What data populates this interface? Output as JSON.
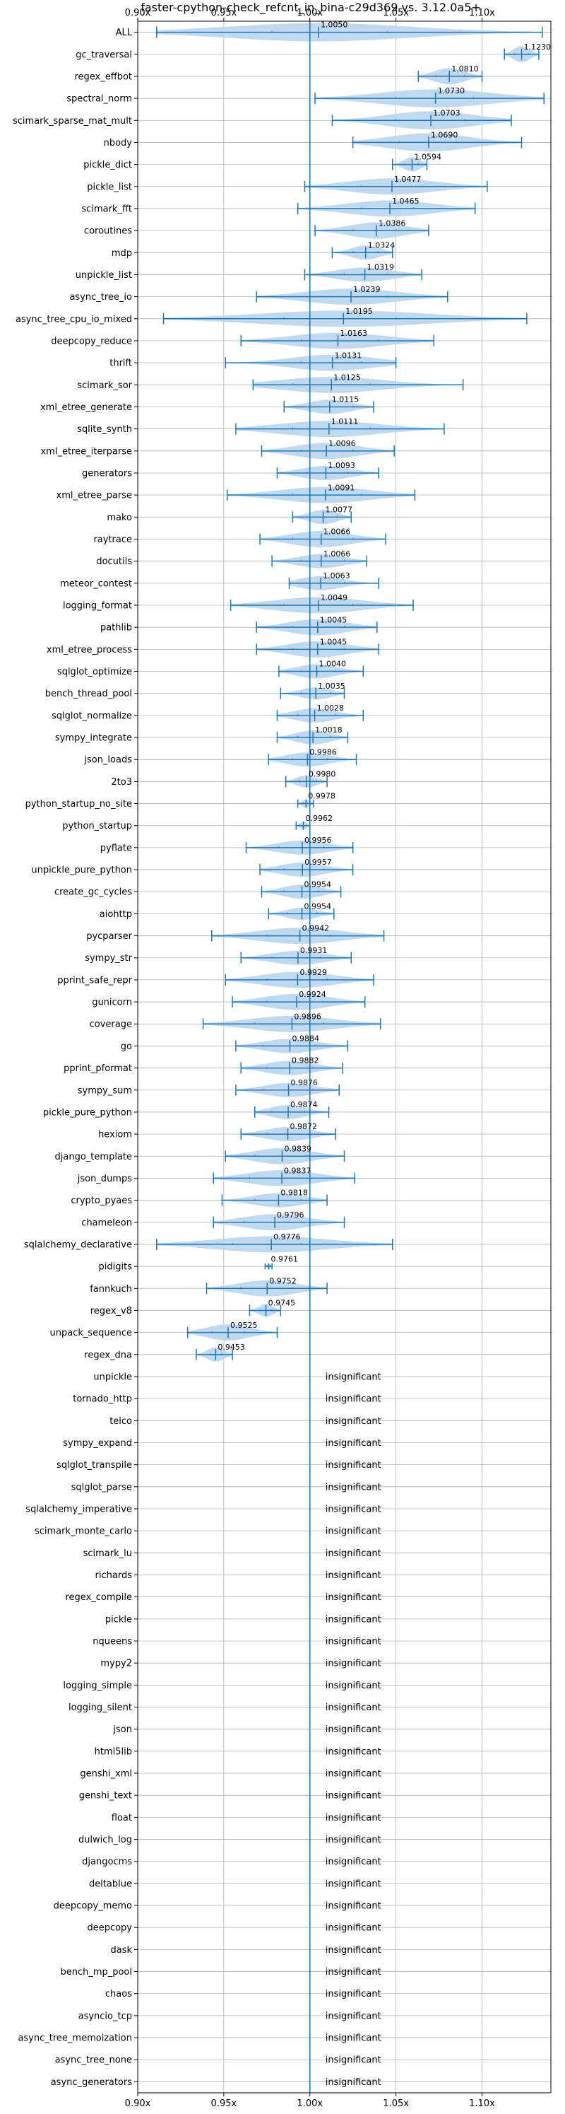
{
  "chart_data": {
    "type": "violin",
    "title": "faster-cpython-check_refcnt_in_bina-c29d369 vs. 3.12.0a5+",
    "xlim": [
      0.9,
      1.14
    ],
    "x_ticks": [
      0.9,
      0.95,
      1.0,
      1.05,
      1.1
    ],
    "x_tick_labels": [
      "0.90x",
      "0.95x",
      "1.00x",
      "1.05x",
      "1.10x"
    ],
    "reference_line": 1.0,
    "grid": true,
    "colors": {
      "violin": "#bdd7ee",
      "line": "#1f77b4",
      "grid": "#b0b0b0"
    },
    "insignificant_label": "insignificant",
    "benchmarks": [
      {
        "name": "ALL",
        "value": 1.005,
        "label": "1.0050",
        "min": 0.911,
        "max": 1.135,
        "q1": 0.978,
        "q3": 1.045,
        "width": 0.9
      },
      {
        "name": "gc_traversal",
        "value": 1.123,
        "label": "1.1230",
        "min": 1.113,
        "max": 1.133,
        "q1": 1.119,
        "q3": 1.127,
        "width": 0.8
      },
      {
        "name": "regex_effbot",
        "value": 1.081,
        "label": "1.0810",
        "min": 1.063,
        "max": 1.1,
        "q1": 1.073,
        "q3": 1.09,
        "width": 0.8
      },
      {
        "name": "spectral_norm",
        "value": 1.073,
        "label": "1.0730",
        "min": 1.003,
        "max": 1.136,
        "q1": 1.05,
        "q3": 1.095,
        "width": 0.9
      },
      {
        "name": "scimark_sparse_mat_mult",
        "value": 1.0703,
        "label": "1.0703",
        "min": 1.013,
        "max": 1.117,
        "q1": 1.05,
        "q3": 1.09,
        "width": 0.9
      },
      {
        "name": "nbody",
        "value": 1.069,
        "label": "1.0690",
        "min": 1.025,
        "max": 1.123,
        "q1": 1.052,
        "q3": 1.085,
        "width": 0.9
      },
      {
        "name": "pickle_dict",
        "value": 1.0594,
        "label": "1.0594",
        "min": 1.048,
        "max": 1.068,
        "q1": 1.055,
        "q3": 1.063,
        "width": 0.7
      },
      {
        "name": "pickle_list",
        "value": 1.0477,
        "label": "1.0477",
        "min": 0.997,
        "max": 1.103,
        "q1": 1.03,
        "q3": 1.065,
        "width": 0.8
      },
      {
        "name": "scimark_fft",
        "value": 1.0465,
        "label": "1.0465",
        "min": 0.993,
        "max": 1.096,
        "q1": 1.03,
        "q3": 1.06,
        "width": 0.8
      },
      {
        "name": "coroutines",
        "value": 1.0386,
        "label": "1.0386",
        "min": 1.003,
        "max": 1.069,
        "q1": 1.025,
        "q3": 1.05,
        "width": 0.8
      },
      {
        "name": "mdp",
        "value": 1.0324,
        "label": "1.0324",
        "min": 1.013,
        "max": 1.048,
        "q1": 1.025,
        "q3": 1.04,
        "width": 0.7
      },
      {
        "name": "unpickle_list",
        "value": 1.0319,
        "label": "1.0319",
        "min": 0.997,
        "max": 1.065,
        "q1": 1.02,
        "q3": 1.045,
        "width": 0.7
      },
      {
        "name": "async_tree_io",
        "value": 1.0239,
        "label": "1.0239",
        "min": 0.969,
        "max": 1.08,
        "q1": 1.0,
        "q3": 1.045,
        "width": 0.8
      },
      {
        "name": "async_tree_cpu_io_mixed",
        "value": 1.0195,
        "label": "1.0195",
        "min": 0.915,
        "max": 1.126,
        "q1": 0.985,
        "q3": 1.05,
        "width": 0.8
      },
      {
        "name": "deepcopy_reduce",
        "value": 1.0163,
        "label": "1.0163",
        "min": 0.96,
        "max": 1.072,
        "q1": 0.995,
        "q3": 1.04,
        "width": 0.8
      },
      {
        "name": "thrift",
        "value": 1.0131,
        "label": "1.0131",
        "min": 0.951,
        "max": 1.05,
        "q1": 0.995,
        "q3": 1.03,
        "width": 0.8
      },
      {
        "name": "scimark_sor",
        "value": 1.0125,
        "label": "1.0125",
        "min": 0.967,
        "max": 1.089,
        "q1": 0.99,
        "q3": 1.035,
        "width": 0.8
      },
      {
        "name": "xml_etree_generate",
        "value": 1.0115,
        "label": "1.0115",
        "min": 0.985,
        "max": 1.037,
        "q1": 1.0,
        "q3": 1.025,
        "width": 0.7
      },
      {
        "name": "sqlite_synth",
        "value": 1.0111,
        "label": "1.0111",
        "min": 0.957,
        "max": 1.078,
        "q1": 0.99,
        "q3": 1.035,
        "width": 0.8
      },
      {
        "name": "xml_etree_iterparse",
        "value": 1.0096,
        "label": "1.0096",
        "min": 0.972,
        "max": 1.049,
        "q1": 0.995,
        "q3": 1.025,
        "width": 0.8
      },
      {
        "name": "generators",
        "value": 1.0093,
        "label": "1.0093",
        "min": 0.981,
        "max": 1.04,
        "q1": 0.998,
        "q3": 1.022,
        "width": 0.7
      },
      {
        "name": "xml_etree_parse",
        "value": 1.0091,
        "label": "1.0091",
        "min": 0.952,
        "max": 1.061,
        "q1": 0.99,
        "q3": 1.03,
        "width": 0.8
      },
      {
        "name": "mako",
        "value": 1.0077,
        "label": "1.0077",
        "min": 0.99,
        "max": 1.024,
        "q1": 1.0,
        "q3": 1.016,
        "width": 0.7
      },
      {
        "name": "raytrace",
        "value": 1.0066,
        "label": "1.0066",
        "min": 0.971,
        "max": 1.044,
        "q1": 0.99,
        "q3": 1.025,
        "width": 0.8
      },
      {
        "name": "docutils",
        "value": 1.0066,
        "label": "1.0066",
        "min": 0.978,
        "max": 1.033,
        "q1": 0.995,
        "q3": 1.02,
        "width": 0.7
      },
      {
        "name": "meteor_contest",
        "value": 1.0063,
        "label": "1.0063",
        "min": 0.988,
        "max": 1.04,
        "q1": 0.998,
        "q3": 1.02,
        "width": 0.7
      },
      {
        "name": "logging_format",
        "value": 1.0049,
        "label": "1.0049",
        "min": 0.954,
        "max": 1.06,
        "q1": 0.985,
        "q3": 1.025,
        "width": 0.8
      },
      {
        "name": "pathlib",
        "value": 1.0045,
        "label": "1.0045",
        "min": 0.969,
        "max": 1.039,
        "q1": 0.99,
        "q3": 1.02,
        "width": 0.8
      },
      {
        "name": "xml_etree_process",
        "value": 1.0045,
        "label": "1.0045",
        "min": 0.969,
        "max": 1.04,
        "q1": 0.99,
        "q3": 1.02,
        "width": 0.8
      },
      {
        "name": "sqlglot_optimize",
        "value": 1.004,
        "label": "1.0040",
        "min": 0.982,
        "max": 1.031,
        "q1": 0.995,
        "q3": 1.015,
        "width": 0.7
      },
      {
        "name": "bench_thread_pool",
        "value": 1.0035,
        "label": "1.0035",
        "min": 0.983,
        "max": 1.02,
        "q1": 0.995,
        "q3": 1.012,
        "width": 0.6
      },
      {
        "name": "sqlglot_normalize",
        "value": 1.0028,
        "label": "1.0028",
        "min": 0.981,
        "max": 1.031,
        "q1": 0.993,
        "q3": 1.015,
        "width": 0.7
      },
      {
        "name": "sympy_integrate",
        "value": 1.0018,
        "label": "1.0018",
        "min": 0.981,
        "max": 1.022,
        "q1": 0.993,
        "q3": 1.012,
        "width": 0.7
      },
      {
        "name": "json_loads",
        "value": 0.9986,
        "label": "0.9986",
        "min": 0.976,
        "max": 1.027,
        "q1": 0.99,
        "q3": 1.01,
        "width": 0.7
      },
      {
        "name": "2to3",
        "value": 0.998,
        "label": "0.9980",
        "min": 0.986,
        "max": 1.01,
        "q1": 0.994,
        "q3": 1.004,
        "width": 0.6
      },
      {
        "name": "python_startup_no_site",
        "value": 0.9978,
        "label": "0.9978",
        "min": 0.993,
        "max": 1.002,
        "q1": 0.996,
        "q3": 1.0,
        "width": 0.4
      },
      {
        "name": "python_startup",
        "value": 0.9962,
        "label": "0.9962",
        "min": 0.992,
        "max": 1.0,
        "q1": 0.994,
        "q3": 0.998,
        "width": 0.4
      },
      {
        "name": "pyflate",
        "value": 0.9956,
        "label": "0.9956",
        "min": 0.963,
        "max": 1.025,
        "q1": 0.982,
        "q3": 1.008,
        "width": 0.7
      },
      {
        "name": "unpickle_pure_python",
        "value": 0.9957,
        "label": "0.9957",
        "min": 0.971,
        "max": 1.025,
        "q1": 0.985,
        "q3": 1.008,
        "width": 0.7
      },
      {
        "name": "create_gc_cycles",
        "value": 0.9954,
        "label": "0.9954",
        "min": 0.972,
        "max": 1.018,
        "q1": 0.985,
        "q3": 1.005,
        "width": 0.7
      },
      {
        "name": "aiohttp",
        "value": 0.9954,
        "label": "0.9954",
        "min": 0.976,
        "max": 1.014,
        "q1": 0.987,
        "q3": 1.004,
        "width": 0.6
      },
      {
        "name": "pycparser",
        "value": 0.9942,
        "label": "0.9942",
        "min": 0.943,
        "max": 1.043,
        "q1": 0.975,
        "q3": 1.012,
        "width": 0.8
      },
      {
        "name": "sympy_str",
        "value": 0.9931,
        "label": "0.9931",
        "min": 0.96,
        "max": 1.024,
        "q1": 0.978,
        "q3": 1.006,
        "width": 0.7
      },
      {
        "name": "pprint_safe_repr",
        "value": 0.9929,
        "label": "0.9929",
        "min": 0.951,
        "max": 1.037,
        "q1": 0.975,
        "q3": 1.01,
        "width": 0.8
      },
      {
        "name": "gunicorn",
        "value": 0.9924,
        "label": "0.9924",
        "min": 0.955,
        "max": 1.032,
        "q1": 0.975,
        "q3": 1.008,
        "width": 0.8
      },
      {
        "name": "coverage",
        "value": 0.9896,
        "label": "0.9896",
        "min": 0.938,
        "max": 1.041,
        "q1": 0.968,
        "q3": 1.008,
        "width": 0.8
      },
      {
        "name": "go",
        "value": 0.9884,
        "label": "0.9884",
        "min": 0.957,
        "max": 1.022,
        "q1": 0.973,
        "q3": 1.003,
        "width": 0.7
      },
      {
        "name": "pprint_pformat",
        "value": 0.9882,
        "label": "0.9882",
        "min": 0.96,
        "max": 1.019,
        "q1": 0.975,
        "q3": 1.002,
        "width": 0.7
      },
      {
        "name": "sympy_sum",
        "value": 0.9876,
        "label": "0.9876",
        "min": 0.957,
        "max": 1.017,
        "q1": 0.973,
        "q3": 1.002,
        "width": 0.7
      },
      {
        "name": "pickle_pure_python",
        "value": 0.9874,
        "label": "0.9874",
        "min": 0.968,
        "max": 1.011,
        "q1": 0.978,
        "q3": 0.997,
        "width": 0.7
      },
      {
        "name": "hexiom",
        "value": 0.9872,
        "label": "0.9872",
        "min": 0.96,
        "max": 1.015,
        "q1": 0.975,
        "q3": 1.0,
        "width": 0.7
      },
      {
        "name": "django_template",
        "value": 0.9839,
        "label": "0.9839",
        "min": 0.951,
        "max": 1.02,
        "q1": 0.968,
        "q3": 0.998,
        "width": 0.8
      },
      {
        "name": "json_dumps",
        "value": 0.9837,
        "label": "0.9837",
        "min": 0.944,
        "max": 1.026,
        "q1": 0.965,
        "q3": 1.0,
        "width": 0.8
      },
      {
        "name": "crypto_pyaes",
        "value": 0.9818,
        "label": "0.9818",
        "min": 0.949,
        "max": 1.01,
        "q1": 0.968,
        "q3": 0.995,
        "width": 0.7
      },
      {
        "name": "chameleon",
        "value": 0.9796,
        "label": "0.9796",
        "min": 0.944,
        "max": 1.02,
        "q1": 0.962,
        "q3": 0.995,
        "width": 0.8
      },
      {
        "name": "sqlalchemy_declarative",
        "value": 0.9776,
        "label": "0.9776",
        "min": 0.911,
        "max": 1.048,
        "q1": 0.955,
        "q3": 0.995,
        "width": 0.8
      },
      {
        "name": "pidigits",
        "value": 0.9761,
        "label": "0.9761",
        "min": 0.974,
        "max": 0.978,
        "q1": 0.975,
        "q3": 0.977,
        "width": 0.3
      },
      {
        "name": "fannkuch",
        "value": 0.9752,
        "label": "0.9752",
        "min": 0.94,
        "max": 1.01,
        "q1": 0.96,
        "q3": 0.99,
        "width": 0.8
      },
      {
        "name": "regex_v8",
        "value": 0.9745,
        "label": "0.9745",
        "min": 0.965,
        "max": 0.983,
        "q1": 0.971,
        "q3": 0.978,
        "width": 0.6
      },
      {
        "name": "unpack_sequence",
        "value": 0.9525,
        "label": "0.9525",
        "min": 0.929,
        "max": 0.981,
        "q1": 0.943,
        "q3": 0.962,
        "width": 0.8
      },
      {
        "name": "regex_dna",
        "value": 0.9453,
        "label": "0.9453",
        "min": 0.934,
        "max": 0.955,
        "q1": 0.942,
        "q3": 0.949,
        "width": 0.7
      },
      {
        "name": "unpickle",
        "insignificant": true
      },
      {
        "name": "tornado_http",
        "insignificant": true
      },
      {
        "name": "telco",
        "insignificant": true
      },
      {
        "name": "sympy_expand",
        "insignificant": true
      },
      {
        "name": "sqlglot_transpile",
        "insignificant": true
      },
      {
        "name": "sqlglot_parse",
        "insignificant": true
      },
      {
        "name": "sqlalchemy_imperative",
        "insignificant": true
      },
      {
        "name": "scimark_monte_carlo",
        "insignificant": true
      },
      {
        "name": "scimark_lu",
        "insignificant": true
      },
      {
        "name": "richards",
        "insignificant": true
      },
      {
        "name": "regex_compile",
        "insignificant": true
      },
      {
        "name": "pickle",
        "insignificant": true
      },
      {
        "name": "nqueens",
        "insignificant": true
      },
      {
        "name": "mypy2",
        "insignificant": true
      },
      {
        "name": "logging_simple",
        "insignificant": true
      },
      {
        "name": "logging_silent",
        "insignificant": true
      },
      {
        "name": "json",
        "insignificant": true
      },
      {
        "name": "html5lib",
        "insignificant": true
      },
      {
        "name": "genshi_xml",
        "insignificant": true
      },
      {
        "name": "genshi_text",
        "insignificant": true
      },
      {
        "name": "float",
        "insignificant": true
      },
      {
        "name": "dulwich_log",
        "insignificant": true
      },
      {
        "name": "djangocms",
        "insignificant": true
      },
      {
        "name": "deltablue",
        "insignificant": true
      },
      {
        "name": "deepcopy_memo",
        "insignificant": true
      },
      {
        "name": "deepcopy",
        "insignificant": true
      },
      {
        "name": "dask",
        "insignificant": true
      },
      {
        "name": "bench_mp_pool",
        "insignificant": true
      },
      {
        "name": "chaos",
        "insignificant": true
      },
      {
        "name": "asyncio_tcp",
        "insignificant": true
      },
      {
        "name": "async_tree_memoization",
        "insignificant": true
      },
      {
        "name": "async_tree_none",
        "insignificant": true
      },
      {
        "name": "async_generators",
        "insignificant": true
      }
    ]
  }
}
